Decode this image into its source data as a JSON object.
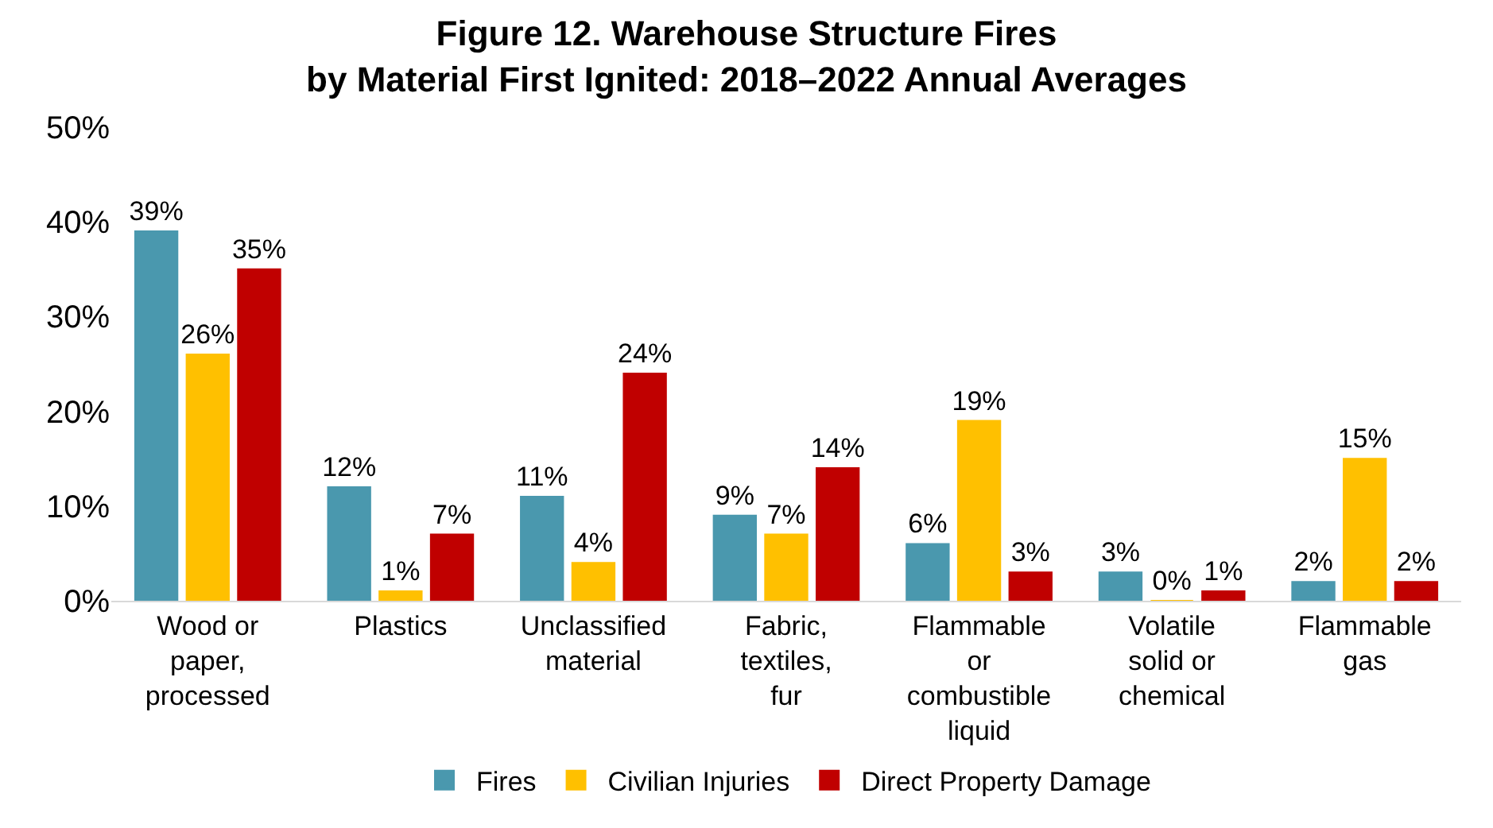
{
  "chart_data": {
    "type": "bar",
    "title": "Figure 12. Warehouse Structure Fires\nby Material First Ignited: 2018–2022 Annual Averages",
    "categories": [
      "Wood or paper, processed",
      "Plastics",
      "Unclassified material",
      "Fabric, textiles, fur",
      "Flammable or combustible liquid",
      "Volatile solid or chemical",
      "Flammable gas"
    ],
    "series": [
      {
        "name": "Fires",
        "color": "#4a98ae",
        "values": [
          39,
          12,
          11,
          9,
          6,
          3,
          2
        ],
        "value_labels": [
          "39%",
          "12%",
          "11%",
          "9%",
          "6%",
          "3%",
          "2%"
        ]
      },
      {
        "name": "Civilian Injuries",
        "color": "#ffc000",
        "values": [
          26,
          1,
          4,
          7,
          19,
          0,
          15
        ],
        "value_labels": [
          "26%",
          "1%",
          "4%",
          "7%",
          "19%",
          "0%",
          "15%"
        ]
      },
      {
        "name": "Direct Property Damage",
        "color": "#c00000",
        "values": [
          35,
          7,
          24,
          14,
          3,
          1,
          2
        ],
        "value_labels": [
          "35%",
          "7%",
          "24%",
          "14%",
          "3%",
          "1%",
          "2%"
        ]
      }
    ],
    "ylim": [
      0,
      50
    ],
    "yticks": [
      {
        "value": 0,
        "label": "0%"
      },
      {
        "value": 10,
        "label": "10%"
      },
      {
        "value": 20,
        "label": "20%"
      },
      {
        "value": 30,
        "label": "30%"
      },
      {
        "value": 40,
        "label": "40%"
      },
      {
        "value": 50,
        "label": "50%"
      }
    ],
    "grid": false,
    "legend": "bottom"
  }
}
